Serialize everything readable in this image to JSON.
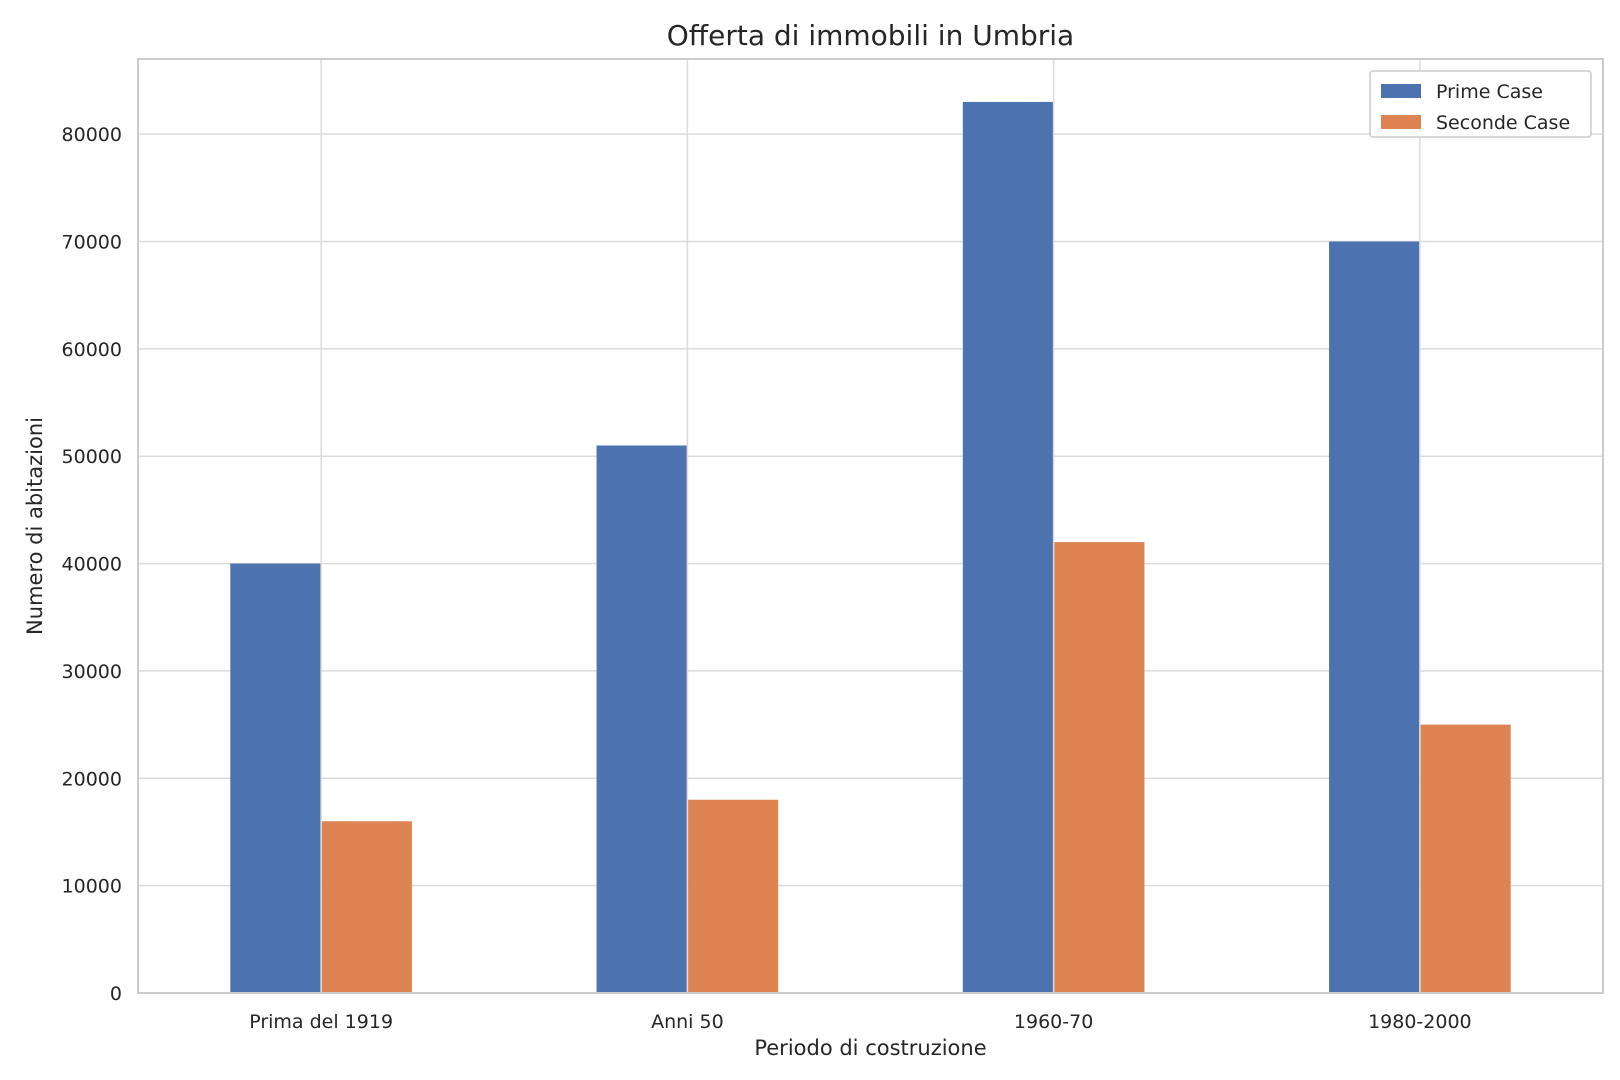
{
  "chart_data": {
    "type": "bar",
    "title": "Offerta di immobili in Umbria",
    "xlabel": "Periodo di costruzione",
    "ylabel": "Numero di abitazioni",
    "categories": [
      "Prima del 1919",
      "Anni 50",
      "1960-70",
      "1980-2000"
    ],
    "series": [
      {
        "name": "Prime Case",
        "color": "#4c72b0",
        "values": [
          40000,
          51000,
          83000,
          70000
        ]
      },
      {
        "name": "Seconde Case",
        "color": "#dd8452",
        "values": [
          16000,
          18000,
          42000,
          25000
        ]
      }
    ],
    "ylim": [
      0,
      87000
    ],
    "yticks": [
      0,
      10000,
      20000,
      30000,
      40000,
      50000,
      60000,
      70000,
      80000
    ],
    "grid": true,
    "legend_position": "top-right"
  }
}
